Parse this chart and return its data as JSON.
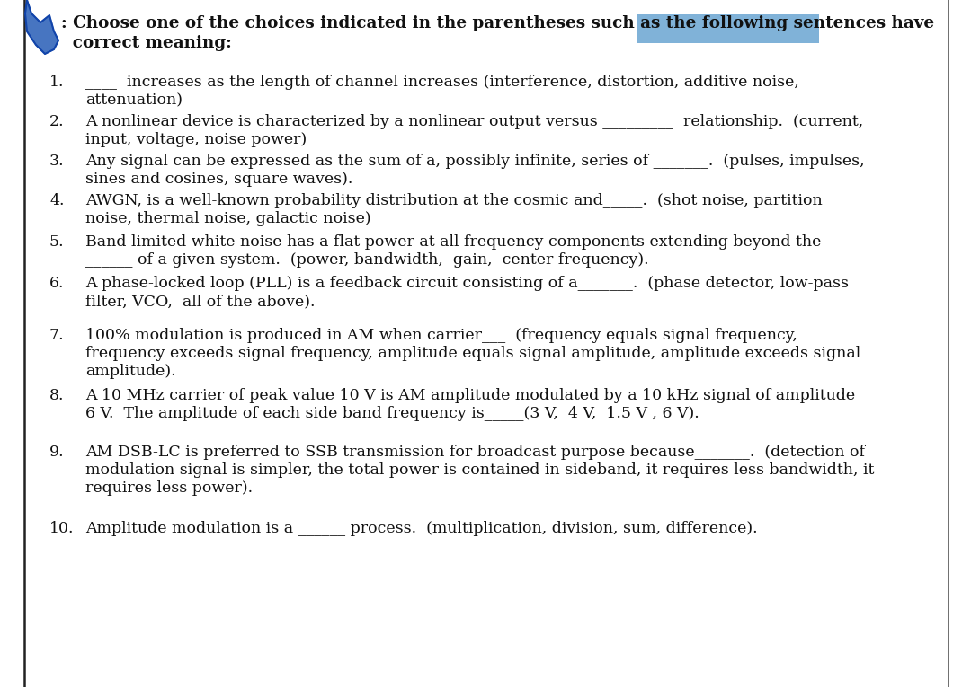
{
  "bg_color": "#ffffff",
  "text_color": "#111111",
  "border_color": "#222222",
  "font_size_title": 13.2,
  "font_size_body": 12.5,
  "title_line1": ": Choose one of the choices indicated in the parentheses such as the following sentences have",
  "title_line2": "  correct meaning:",
  "questions": [
    {
      "num": "1.",
      "line1": "____  increases as the length of channel increases (interference, distortion, additive noise,",
      "line2": "attenuation)"
    },
    {
      "num": "2.",
      "line1": "A nonlinear device is characterized by a nonlinear output versus _________  relationship.  (current,",
      "line2": "input, voltage, noise power)"
    },
    {
      "num": "3.",
      "line1": "Any signal can be expressed as the sum of a, possibly infinite, series of _______.  (pulses, impulses,",
      "line2": "sines and cosines, square waves)."
    },
    {
      "num": "4.",
      "line1": "AWGN, is a well-known probability distribution at the cosmic and_____.  (shot noise, partition",
      "line2": "noise, thermal noise, galactic noise)"
    },
    {
      "num": "5.",
      "line1": "Band limited white noise has a flat power at all frequency components extending beyond the",
      "line2": "______ of a given system.  (power, bandwidth,  gain,  center frequency)."
    },
    {
      "num": "6.",
      "line1": "A phase-locked loop (PLL) is a feedback circuit consisting of a_______.  (phase detector, low-pass",
      "line2": "filter, VCO,  all of the above)."
    },
    {
      "num": "7.",
      "line1": "100% modulation is produced in AM when carrier___  (frequency equals signal frequency,",
      "line2": "frequency exceeds signal frequency, amplitude equals signal amplitude, amplitude exceeds signal",
      "line3": "amplitude)."
    },
    {
      "num": "8.",
      "line1": "A 10 MHz carrier of peak value 10 V is AM amplitude modulated by a 10 kHz signal of amplitude",
      "line2": "6 V.  The amplitude of each side band frequency is_____(3 V,  4 V,  1.5 V , 6 V)."
    },
    {
      "num": "9.",
      "line1": "AM DSB-LC is preferred to SSB transmission for broadcast purpose because_______.  (detection of",
      "line2": "modulation signal is simpler, the total power is contained in sideband, it requires less bandwidth, it",
      "line3": "requires less power)."
    },
    {
      "num": "10.",
      "line1": "Amplitude modulation is a ______ process.  (multiplication, division, sum, difference)."
    }
  ]
}
